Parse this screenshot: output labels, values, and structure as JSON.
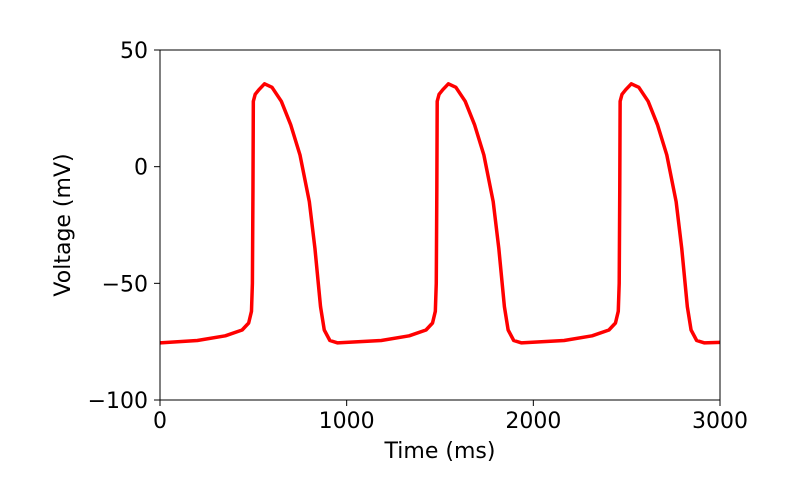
{
  "chart_data": {
    "type": "line",
    "xlabel": "Time (ms)",
    "ylabel": "Voltage (mV)",
    "x": [
      0,
      200,
      350,
      440,
      475,
      490,
      495,
      498,
      500,
      510,
      530,
      560,
      600,
      650,
      700,
      750,
      800,
      830,
      860,
      880,
      910,
      950,
      1185,
      1335,
      1425,
      1460,
      1475,
      1480,
      1483,
      1485,
      1495,
      1515,
      1545,
      1585,
      1635,
      1685,
      1735,
      1785,
      1815,
      1845,
      1865,
      1895,
      1935,
      2165,
      2315,
      2405,
      2440,
      2455,
      2460,
      2463,
      2465,
      2475,
      2495,
      2525,
      2565,
      2615,
      2665,
      2715,
      2765,
      2795,
      2825,
      2845,
      2875,
      2915,
      3000
    ],
    "series": [
      {
        "color": "#ff0000",
        "values": [
          -75.5,
          -74.5,
          -72.5,
          -70,
          -67,
          -62,
          -50,
          -10,
          28,
          31,
          33,
          35.5,
          34,
          28,
          18,
          5,
          -15,
          -35,
          -60,
          -70,
          -74.5,
          -75.5,
          -74.5,
          -72.5,
          -70,
          -67,
          -62,
          -50,
          -10,
          28,
          31,
          33,
          35.5,
          34,
          28,
          18,
          5,
          -15,
          -35,
          -60,
          -70,
          -74.5,
          -75.5,
          -74.5,
          -72.5,
          -70,
          -67,
          -62,
          -50,
          -10,
          28,
          31,
          33,
          35.5,
          34,
          28,
          18,
          5,
          -15,
          -35,
          -60,
          -70,
          -74.5,
          -75.5,
          -75.3
        ]
      }
    ],
    "xlim": [
      0,
      3000
    ],
    "xticks": [
      0,
      1000,
      2000,
      3000
    ],
    "ylim": [
      -100,
      50
    ],
    "yticks": [
      {
        "value": -100,
        "label": "−100"
      },
      {
        "value": -50,
        "label": "−50"
      },
      0,
      50
    ],
    "grid": false
  }
}
